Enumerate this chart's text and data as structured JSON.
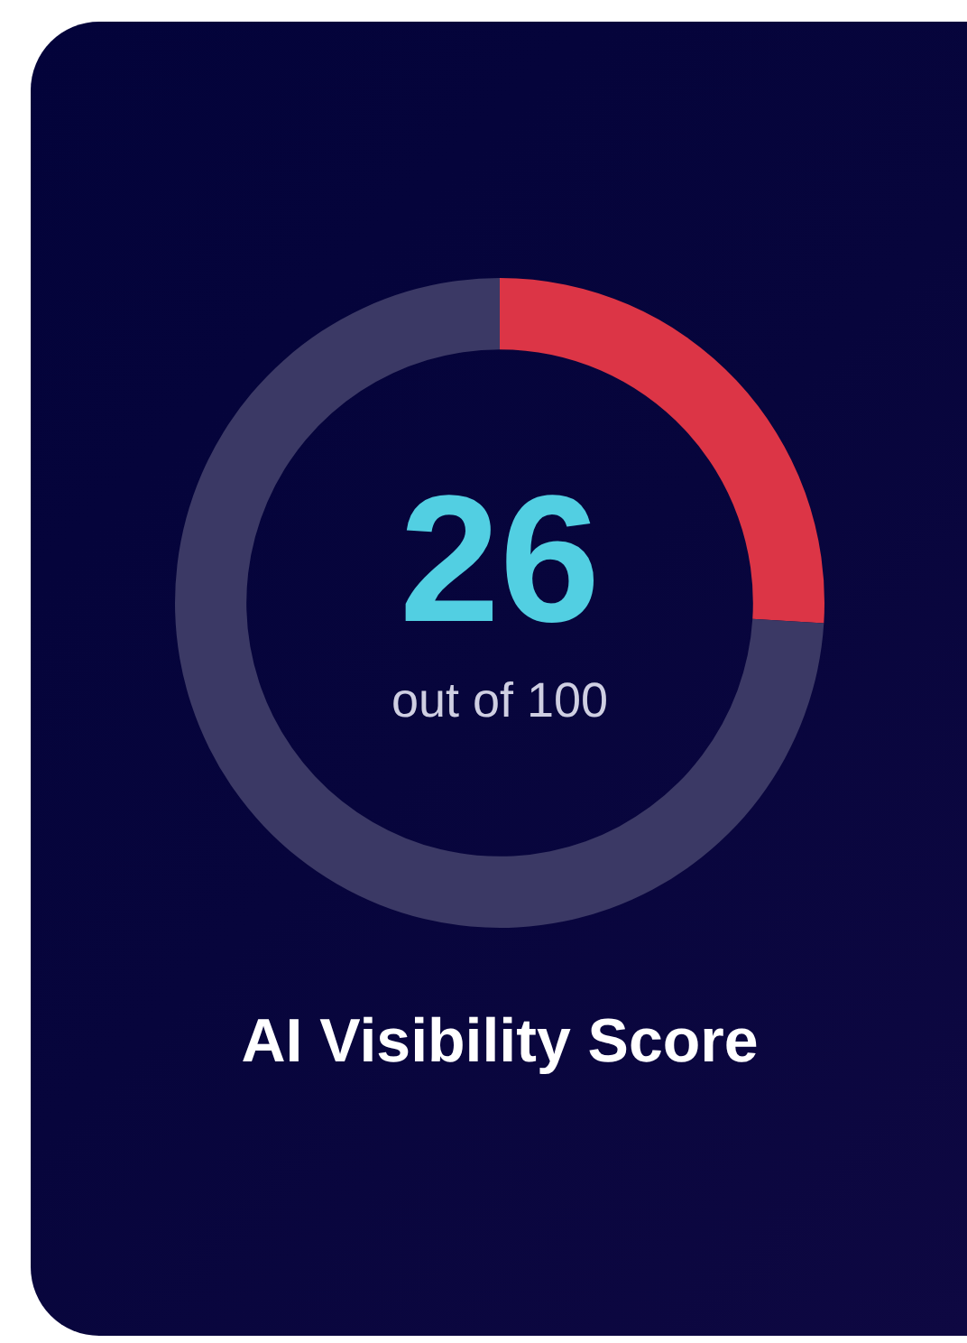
{
  "chart_data": {
    "type": "donut",
    "title": "AI Visibility Score",
    "categories": [
      null,
      null
    ],
    "values": [
      26,
      74
    ],
    "colors": [
      "#dc3546",
      "#3b3965"
    ],
    "annotations": [
      "26",
      "out of 100"
    ]
  }
}
